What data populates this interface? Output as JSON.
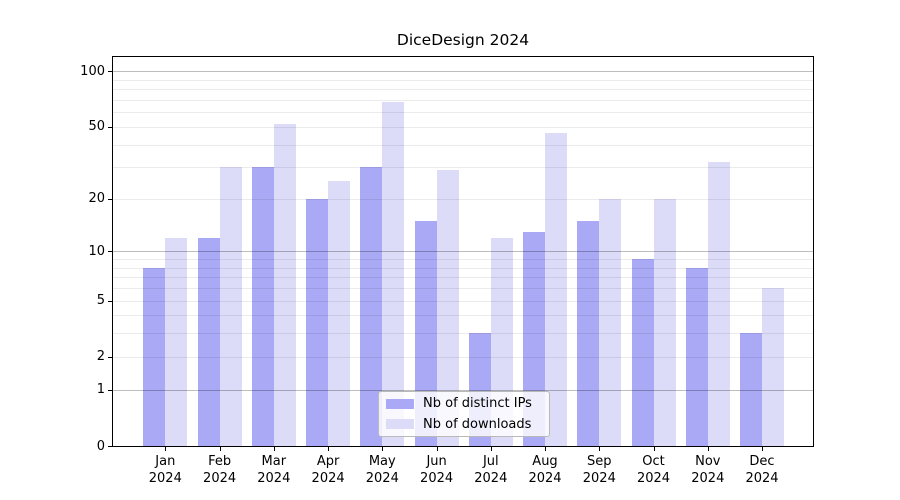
{
  "title": "DiceDesign 2024",
  "chart_data": {
    "type": "bar",
    "title": "DiceDesign 2024",
    "yscale": "log1p",
    "ylim": [
      0,
      120
    ],
    "grid": "on",
    "legend_position": "lower center",
    "categories": [
      {
        "line1": "Jan",
        "line2": "2024"
      },
      {
        "line1": "Feb",
        "line2": "2024"
      },
      {
        "line1": "Mar",
        "line2": "2024"
      },
      {
        "line1": "Apr",
        "line2": "2024"
      },
      {
        "line1": "May",
        "line2": "2024"
      },
      {
        "line1": "Jun",
        "line2": "2024"
      },
      {
        "line1": "Jul",
        "line2": "2024"
      },
      {
        "line1": "Aug",
        "line2": "2024"
      },
      {
        "line1": "Sep",
        "line2": "2024"
      },
      {
        "line1": "Oct",
        "line2": "2024"
      },
      {
        "line1": "Nov",
        "line2": "2024"
      },
      {
        "line1": "Dec",
        "line2": "2024"
      }
    ],
    "series": [
      {
        "name": "Nb of distinct IPs",
        "color": "#a9a9f6",
        "values": [
          8,
          12,
          30,
          20,
          30,
          15,
          3,
          13,
          15,
          9,
          8,
          3
        ]
      },
      {
        "name": "Nb of downloads",
        "color": "#dcdcf8",
        "values": [
          12,
          30,
          52,
          25,
          68,
          29,
          12,
          46,
          20,
          20,
          32,
          6
        ]
      }
    ],
    "y_ticks": [
      100,
      50,
      20,
      10,
      5,
      2,
      1,
      0
    ],
    "grid_major_values": [
      1,
      10,
      100
    ],
    "grid_minor_values": [
      2,
      3,
      4,
      5,
      6,
      7,
      8,
      9,
      20,
      30,
      40,
      50,
      60,
      70,
      80,
      90
    ]
  }
}
